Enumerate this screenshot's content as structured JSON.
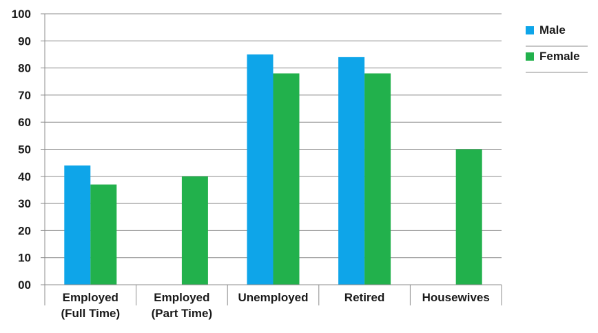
{
  "chart_data": {
    "type": "bar",
    "title": "",
    "xlabel": "",
    "ylabel": "",
    "categories": [
      [
        "Employed",
        "(Full Time)"
      ],
      [
        "Employed",
        "(Part Time)"
      ],
      [
        "Unemployed"
      ],
      [
        "Retired"
      ],
      [
        "Housewives"
      ]
    ],
    "series": [
      {
        "name": "Male",
        "color": "#0ea5e9",
        "values": [
          44,
          null,
          85,
          84,
          null
        ]
      },
      {
        "name": "Female",
        "color": "#22b14c",
        "values": [
          37,
          40,
          78,
          78,
          50
        ]
      }
    ],
    "ylim": [
      0,
      100
    ],
    "yticks": [
      0,
      10,
      20,
      30,
      40,
      50,
      60,
      70,
      80,
      90,
      100
    ],
    "ytick_labels": [
      "00",
      "10",
      "20",
      "30",
      "40",
      "50",
      "60",
      "70",
      "80",
      "90",
      "100"
    ],
    "grid": true,
    "legend_position": "right"
  }
}
